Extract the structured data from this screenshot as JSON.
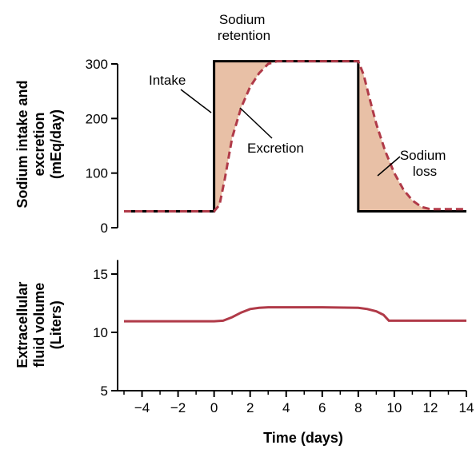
{
  "chart_data": [
    {
      "type": "line",
      "ylabel_lines": [
        "Sodium intake and",
        "excretion",
        "(mEq/day)"
      ],
      "xlim": [
        -5,
        14
      ],
      "ylim": [
        0,
        300
      ],
      "yticks": [
        0,
        100,
        200,
        300
      ],
      "grid": false,
      "series": [
        {
          "name": "Intake",
          "style": "solid",
          "color": "#000000",
          "x": [
            -5,
            0,
            0,
            8,
            8,
            14
          ],
          "y": [
            30,
            30,
            305,
            305,
            30,
            30
          ]
        },
        {
          "name": "Excretion",
          "style": "dashed",
          "color": "#b03a48",
          "x": [
            -5,
            0,
            0.3,
            0.6,
            1.0,
            1.5,
            2.0,
            2.5,
            3.0,
            3.5,
            4.0,
            5.0,
            6.0,
            7.0,
            8.0,
            8.3,
            8.6,
            9.0,
            9.5,
            10.0,
            10.5,
            11.0,
            11.5,
            12.0,
            13.0,
            14.0
          ],
          "y": [
            30,
            30,
            42,
            90,
            165,
            220,
            258,
            283,
            300,
            305,
            305,
            305,
            305,
            305,
            305,
            280,
            240,
            190,
            140,
            100,
            70,
            50,
            38,
            34,
            34,
            34
          ]
        }
      ],
      "shading_color": "#e8c0a6",
      "annotations": [
        {
          "lines": [
            "Sodium",
            "retention"
          ]
        },
        {
          "lines": [
            "Intake"
          ]
        },
        {
          "lines": [
            "Excretion"
          ]
        },
        {
          "lines": [
            "Sodium",
            "loss"
          ]
        }
      ]
    },
    {
      "type": "line",
      "ylabel_lines": [
        "Extracellular",
        "fluid volume",
        "(Liters)"
      ],
      "xlabel": "Time (days)",
      "xlim": [
        -5,
        14
      ],
      "ylim": [
        5,
        16
      ],
      "yticks": [
        5,
        10,
        15
      ],
      "xticks": [
        -4,
        -2,
        0,
        2,
        4,
        6,
        8,
        10,
        12,
        14
      ],
      "xtick_labels": [
        "−4",
        "−2",
        "0",
        "2",
        "4",
        "6",
        "8",
        "10",
        "12",
        "14"
      ],
      "grid": false,
      "series": [
        {
          "style": "solid",
          "color": "#b03a48",
          "x": [
            -5,
            0,
            0.5,
            1.0,
            1.5,
            2.0,
            2.5,
            3.0,
            4.0,
            6.0,
            8.0,
            8.5,
            9.0,
            9.4,
            9.7,
            10.0,
            14.0
          ],
          "y": [
            10.95,
            10.95,
            11.0,
            11.3,
            11.7,
            12.0,
            12.1,
            12.15,
            12.15,
            12.15,
            12.1,
            12.0,
            11.8,
            11.5,
            11.0,
            11.0,
            11.0
          ]
        }
      ]
    }
  ]
}
